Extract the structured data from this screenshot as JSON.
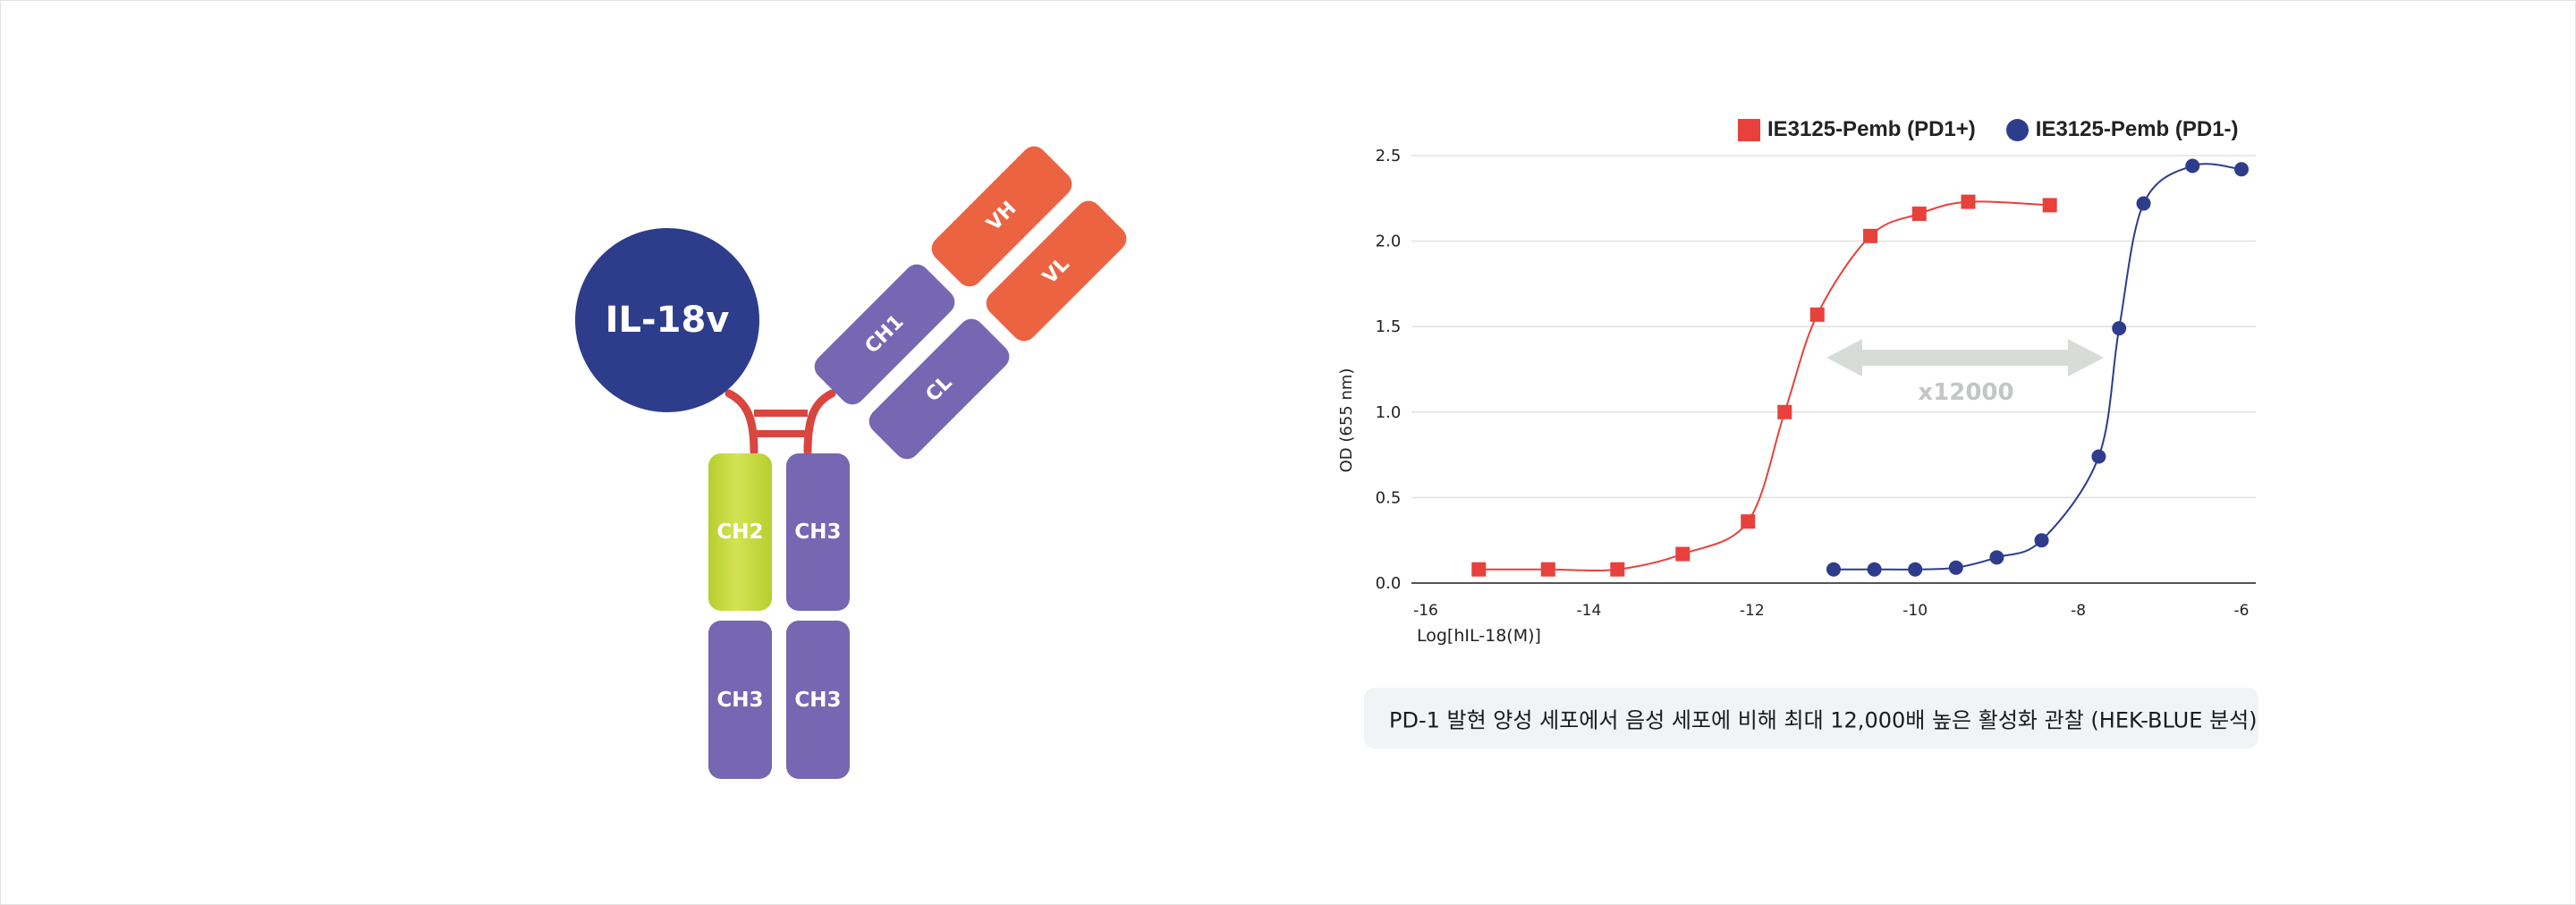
{
  "diagram": {
    "ligand_label": "IL-18v",
    "fab_heavy_variable": "VH",
    "fab_light_variable": "VL",
    "fab_heavy_constant": "CH1",
    "fab_light_constant": "CL",
    "fc_left_upper": "CH2",
    "fc_right_upper": "CH3",
    "fc_left_lower": "CH3",
    "fc_right_lower": "CH3",
    "colors": {
      "ligand": "#2d3d8b",
      "constant": "#7567b1",
      "variable": "#ec6341",
      "ch2": "#c6dc3f",
      "linker": "#d9453f"
    }
  },
  "legend": {
    "pd1_pos": "IE3125-Pemb (PD1+)",
    "pd1_neg": "IE3125-Pemb (PD1-)"
  },
  "arrow_label": "x12000",
  "note": "PD-1 발현 양성 세포에서 음성 세포에 비해 최대 12,000배 높은 활성화 관찰 (HEK-BLUE 분석)",
  "chart_data": {
    "type": "scatter",
    "xlabel": "Log[hIL-18(M)]",
    "ylabel": "OD (655 nm)",
    "xlim": [
      -16,
      -6
    ],
    "ylim": [
      0,
      2.5
    ],
    "x_ticks": [
      -16,
      -14,
      -12,
      -10,
      -8,
      -6
    ],
    "x_tick_labels": [
      "-16",
      "-14",
      "-12",
      "-10",
      "-8",
      "-6"
    ],
    "y_ticks": [
      0,
      0.5,
      1.0,
      1.5,
      2.0,
      2.5
    ],
    "y_tick_labels": [
      "0.0",
      "0.5",
      "1.0",
      "1.5",
      "2.0",
      "2.5"
    ],
    "grid": true,
    "legend_position": "top-right",
    "series": [
      {
        "name": "IE3125-Pemb (PD1+)",
        "marker": "square",
        "color": "#e8413c",
        "x": [
          -15.35,
          -14.5,
          -13.65,
          -12.85,
          -12.05,
          -11.6,
          -11.2,
          -10.55,
          -9.95,
          -9.35,
          -8.35
        ],
        "y": [
          0.08,
          0.08,
          0.08,
          0.17,
          0.36,
          1.0,
          1.57,
          2.03,
          2.16,
          2.23,
          2.21
        ]
      },
      {
        "name": "IE3125-Pemb (PD1-)",
        "marker": "circle",
        "color": "#2d3d8b",
        "x": [
          -11.0,
          -10.5,
          -10.0,
          -9.5,
          -9.0,
          -8.45,
          -7.75,
          -7.5,
          -7.2,
          -6.6,
          -6.0
        ],
        "y": [
          0.08,
          0.08,
          0.08,
          0.09,
          0.15,
          0.25,
          0.74,
          1.49,
          2.22,
          2.44,
          2.42
        ]
      }
    ]
  }
}
